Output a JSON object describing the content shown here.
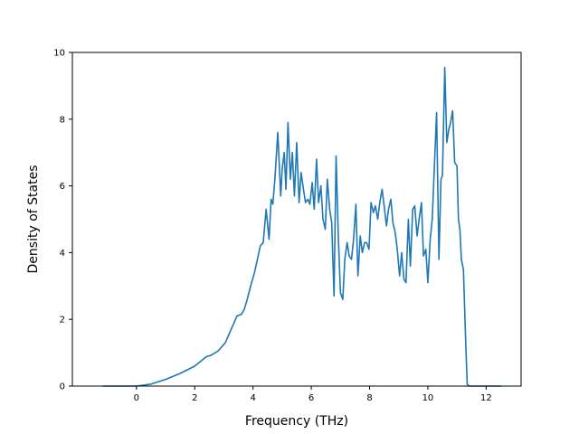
{
  "chart_data": {
    "type": "line",
    "title": "",
    "xlabel": "Frequency (THz)",
    "ylabel": "Density of States",
    "xlim": [
      -2.2,
      13.2
    ],
    "ylim": [
      0,
      10
    ],
    "xticks": [
      0,
      2,
      4,
      6,
      8,
      10,
      12
    ],
    "xtick_labels": [
      "0",
      "2",
      "4",
      "6",
      "8",
      "10",
      "12"
    ],
    "yticks": [
      0,
      2,
      4,
      6,
      8,
      10
    ],
    "ytick_labels": [
      "0",
      "2",
      "4",
      "6",
      "8",
      "10"
    ],
    "grid": false,
    "legend": "none",
    "series": [
      {
        "color": "#1f77b4",
        "x": [
          -1.15,
          0.0,
          0.5,
          1.0,
          1.5,
          2.0,
          2.4,
          2.55,
          2.8,
          2.95,
          3.05,
          3.15,
          3.3,
          3.45,
          3.6,
          3.7,
          3.8,
          3.95,
          4.05,
          4.15,
          4.25,
          4.35,
          4.45,
          4.55,
          4.62,
          4.68,
          4.75,
          4.85,
          4.95,
          5.0,
          5.07,
          5.13,
          5.2,
          5.28,
          5.35,
          5.42,
          5.5,
          5.58,
          5.65,
          5.73,
          5.8,
          5.88,
          5.95,
          6.03,
          6.1,
          6.18,
          6.25,
          6.33,
          6.4,
          6.48,
          6.55,
          6.63,
          6.7,
          6.78,
          6.85,
          6.93,
          7.0,
          7.08,
          7.15,
          7.23,
          7.3,
          7.38,
          7.45,
          7.53,
          7.6,
          7.68,
          7.75,
          7.83,
          7.9,
          7.98,
          8.05,
          8.13,
          8.2,
          8.28,
          8.35,
          8.43,
          8.5,
          8.58,
          8.65,
          8.73,
          8.8,
          8.88,
          8.95,
          9.03,
          9.1,
          9.18,
          9.25,
          9.33,
          9.4,
          9.48,
          9.55,
          9.63,
          9.7,
          9.78,
          9.85,
          9.93,
          10.0,
          10.08,
          10.15,
          10.22,
          10.3,
          10.38,
          10.45,
          10.5,
          10.58,
          10.65,
          10.72,
          10.78,
          10.85,
          10.92,
          11.0,
          11.05,
          11.1,
          11.15,
          11.22,
          11.3,
          11.35,
          11.42,
          11.48,
          12.5
        ],
        "y": [
          0.0,
          0.0,
          0.06,
          0.2,
          0.38,
          0.6,
          0.88,
          0.92,
          1.05,
          1.2,
          1.3,
          1.5,
          1.8,
          2.1,
          2.15,
          2.3,
          2.6,
          3.1,
          3.4,
          3.8,
          4.2,
          4.3,
          5.3,
          4.4,
          5.6,
          5.45,
          6.2,
          7.6,
          5.7,
          6.5,
          7.0,
          5.9,
          7.9,
          6.2,
          7.0,
          5.7,
          7.3,
          5.5,
          6.4,
          5.9,
          5.5,
          5.6,
          5.45,
          6.1,
          5.3,
          6.8,
          5.5,
          6.0,
          5.0,
          4.7,
          6.2,
          5.3,
          4.9,
          2.7,
          6.9,
          4.4,
          2.8,
          2.6,
          3.8,
          4.3,
          3.9,
          3.8,
          4.4,
          5.45,
          3.3,
          4.5,
          4.0,
          4.3,
          4.3,
          4.1,
          5.5,
          5.2,
          5.4,
          5.0,
          5.5,
          5.9,
          5.4,
          4.8,
          5.3,
          5.6,
          4.9,
          4.6,
          4.1,
          3.3,
          4.0,
          3.2,
          3.1,
          5.0,
          3.6,
          5.3,
          5.4,
          4.5,
          5.0,
          5.5,
          3.9,
          4.1,
          3.1,
          4.4,
          5.0,
          6.5,
          8.2,
          3.8,
          6.2,
          6.3,
          9.55,
          7.3,
          7.7,
          7.9,
          8.25,
          6.7,
          6.6,
          5.0,
          4.7,
          3.8,
          3.5,
          1.3,
          0.05,
          0.0,
          0.0,
          0.0
        ]
      }
    ]
  }
}
